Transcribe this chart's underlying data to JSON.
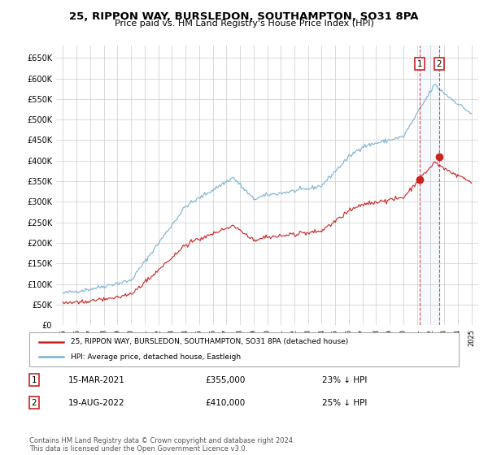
{
  "title": "25, RIPPON WAY, BURSLEDON, SOUTHAMPTON, SO31 8PA",
  "subtitle": "Price paid vs. HM Land Registry's House Price Index (HPI)",
  "title_fontsize": 9.5,
  "subtitle_fontsize": 8,
  "ylabel_ticks": [
    "£0",
    "£50K",
    "£100K",
    "£150K",
    "£200K",
    "£250K",
    "£300K",
    "£350K",
    "£400K",
    "£450K",
    "£500K",
    "£550K",
    "£600K",
    "£650K"
  ],
  "ytick_values": [
    0,
    50000,
    100000,
    150000,
    200000,
    250000,
    300000,
    350000,
    400000,
    450000,
    500000,
    550000,
    600000,
    650000
  ],
  "xlim": [
    1994.5,
    2025.5
  ],
  "ylim": [
    0,
    680000
  ],
  "hpi_color": "#7ab0d4",
  "price_color": "#cc2222",
  "sale1_date_num": 2021.2,
  "sale1_price": 355000,
  "sale2_date_num": 2022.63,
  "sale2_price": 410000,
  "legend_line1": "25, RIPPON WAY, BURSLEDON, SOUTHAMPTON, SO31 8PA (detached house)",
  "legend_line2": "HPI: Average price, detached house, Eastleigh",
  "annotation1_date": "15-MAR-2021",
  "annotation1_price": "£355,000",
  "annotation1_hpi": "23% ↓ HPI",
  "annotation2_date": "19-AUG-2022",
  "annotation2_price": "£410,000",
  "annotation2_hpi": "25% ↓ HPI",
  "footnote": "Contains HM Land Registry data © Crown copyright and database right 2024.\nThis data is licensed under the Open Government Licence v3.0.",
  "background_color": "#ffffff",
  "grid_color": "#cccccc"
}
